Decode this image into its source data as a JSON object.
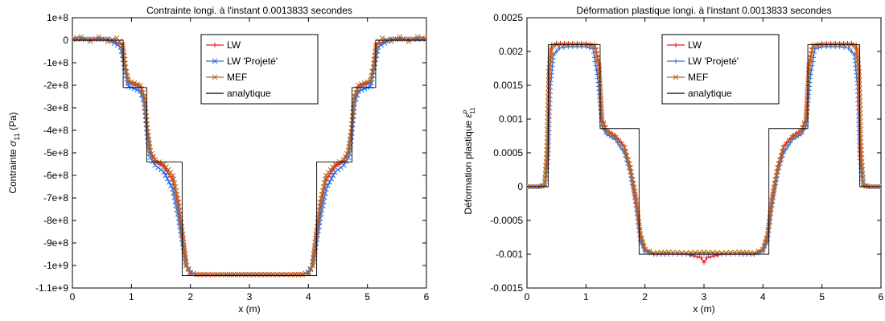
{
  "chart_data": [
    {
      "type": "line",
      "title": "Contrainte longi. à l'instant 0.0013833 secondes",
      "xlabel": "x (m)",
      "ylabel_prefix": "Contrainte",
      "ylabel_symbol": "σ",
      "ylabel_sub": "11",
      "ylabel_sup": "",
      "ylabel_suffix": "(Pa)",
      "xlim": [
        0,
        6
      ],
      "ylim": [
        -1100000000.0,
        100000000.0
      ],
      "xticks": [
        0,
        1,
        2,
        3,
        4,
        5,
        6
      ],
      "xtick_labels": [
        "0",
        "1",
        "2",
        "3",
        "4",
        "5",
        "6"
      ],
      "yticks": [
        100000000.0,
        0,
        -100000000.0,
        -200000000.0,
        -300000000.0,
        -400000000.0,
        -500000000.0,
        -600000000.0,
        -700000000.0,
        -800000000.0,
        -900000000.0,
        -1000000000.0,
        -1100000000.0
      ],
      "ytick_labels": [
        "1e+8",
        "0",
        "-1e+8",
        "-2e+8",
        "-3e+8",
        "-4e+8",
        "-5e+8",
        "-6e+8",
        "-7e+8",
        "-8e+8",
        "-9e+8",
        "-1e+9",
        "-1.1e+9"
      ],
      "grid": false,
      "legend_position": "top-center",
      "series": [
        {
          "name": "LW",
          "color": "#e41a1c",
          "marker": "plus",
          "x": [
            0,
            0.3,
            0.6,
            0.85,
            0.9,
            0.95,
            1.05,
            1.15,
            1.22,
            1.27,
            1.32,
            1.4,
            1.55,
            1.7,
            1.8,
            1.88,
            1.93,
            2.0,
            2.1,
            2.3,
            2.6,
            3.0,
            3.4,
            3.7,
            3.9,
            4.0,
            4.07,
            4.12,
            4.2,
            4.3,
            4.45,
            4.6,
            4.68,
            4.73,
            4.78,
            4.85,
            4.95,
            5.05,
            5.1,
            5.15,
            5.4,
            5.7,
            6.0
          ],
          "y": [
            5000000.0,
            5000000.0,
            5000000.0,
            -20000000.0,
            -130000000.0,
            -185000000.0,
            -195000000.0,
            -205000000.0,
            -260000000.0,
            -400000000.0,
            -500000000.0,
            -535000000.0,
            -560000000.0,
            -620000000.0,
            -750000000.0,
            -900000000.0,
            -1000000000.0,
            -1035000000.0,
            -1040000000.0,
            -1040000000.0,
            -1040000000.0,
            -1040000000.0,
            -1040000000.0,
            -1040000000.0,
            -1040000000.0,
            -1035000000.0,
            -1000000000.0,
            -900000000.0,
            -750000000.0,
            -620000000.0,
            -560000000.0,
            -535000000.0,
            -500000000.0,
            -400000000.0,
            -260000000.0,
            -205000000.0,
            -195000000.0,
            -185000000.0,
            -130000000.0,
            -20000000.0,
            5000000.0,
            5000000.0,
            5000000.0
          ]
        },
        {
          "name": "LW 'Projeté'",
          "color": "#2b6fe0",
          "marker": "x",
          "x": [
            0,
            0.3,
            0.6,
            0.82,
            0.9,
            0.95,
            1.05,
            1.15,
            1.22,
            1.27,
            1.32,
            1.4,
            1.55,
            1.7,
            1.8,
            1.88,
            1.93,
            2.0,
            2.1,
            2.3,
            2.6,
            3.0,
            3.4,
            3.7,
            3.9,
            4.0,
            4.07,
            4.12,
            4.2,
            4.3,
            4.45,
            4.6,
            4.68,
            4.73,
            4.78,
            4.85,
            4.95,
            5.05,
            5.1,
            5.18,
            5.4,
            5.7,
            6.0
          ],
          "y": [
            5000000.0,
            5000000.0,
            5000000.0,
            -30000000.0,
            -140000000.0,
            -205000000.0,
            -215000000.0,
            -225000000.0,
            -280000000.0,
            -430000000.0,
            -520000000.0,
            -555000000.0,
            -585000000.0,
            -660000000.0,
            -790000000.0,
            -920000000.0,
            -1000000000.0,
            -1030000000.0,
            -1040000000.0,
            -1040000000.0,
            -1040000000.0,
            -1040000000.0,
            -1040000000.0,
            -1040000000.0,
            -1040000000.0,
            -1030000000.0,
            -1000000000.0,
            -920000000.0,
            -790000000.0,
            -660000000.0,
            -585000000.0,
            -555000000.0,
            -520000000.0,
            -430000000.0,
            -280000000.0,
            -225000000.0,
            -215000000.0,
            -205000000.0,
            -140000000.0,
            -30000000.0,
            5000000.0,
            5000000.0,
            5000000.0
          ]
        },
        {
          "name": "MEF",
          "color": "#b5651d",
          "marker": "x",
          "x": [
            0,
            0.15,
            0.3,
            0.45,
            0.6,
            0.75,
            0.85,
            0.9,
            0.95,
            1.05,
            1.15,
            1.22,
            1.27,
            1.32,
            1.4,
            1.55,
            1.7,
            1.8,
            1.88,
            1.93,
            2.0,
            2.1,
            2.3,
            2.6,
            3.0,
            3.4,
            3.7,
            3.9,
            4.0,
            4.07,
            4.12,
            4.2,
            4.3,
            4.45,
            4.6,
            4.68,
            4.73,
            4.78,
            4.85,
            4.95,
            5.05,
            5.1,
            5.15,
            5.25,
            5.4,
            5.55,
            5.7,
            5.85,
            6.0
          ],
          "y": [
            5000000.0,
            15000000.0,
            -5000000.0,
            15000000.0,
            -5000000.0,
            10000000.0,
            -20000000.0,
            -120000000.0,
            -180000000.0,
            -190000000.0,
            -200000000.0,
            -250000000.0,
            -390000000.0,
            -490000000.0,
            -530000000.0,
            -550000000.0,
            -600000000.0,
            -720000000.0,
            -880000000.0,
            -1000000000.0,
            -1035000000.0,
            -1040000000.0,
            -1040000000.0,
            -1040000000.0,
            -1040000000.0,
            -1040000000.0,
            -1040000000.0,
            -1040000000.0,
            -1035000000.0,
            -1000000000.0,
            -880000000.0,
            -720000000.0,
            -600000000.0,
            -550000000.0,
            -530000000.0,
            -490000000.0,
            -390000000.0,
            -250000000.0,
            -200000000.0,
            -190000000.0,
            -180000000.0,
            -120000000.0,
            -20000000.0,
            10000000.0,
            -5000000.0,
            15000000.0,
            -5000000.0,
            15000000.0,
            5000000.0
          ]
        },
        {
          "name": "analytique",
          "color": "#000000",
          "marker": "none",
          "x": [
            0,
            0.86,
            0.86,
            1.26,
            1.26,
            1.86,
            1.86,
            4.14,
            4.14,
            4.74,
            4.74,
            5.14,
            5.14,
            6.0
          ],
          "y": [
            0,
            0,
            -210000000.0,
            -210000000.0,
            -540000000.0,
            -540000000.0,
            -1045000000.0,
            -1045000000.0,
            -540000000.0,
            -540000000.0,
            -210000000.0,
            -210000000.0,
            0,
            0
          ]
        }
      ]
    },
    {
      "type": "line",
      "title": "Déformation plastique longi. à l'instant 0.0013833 secondes",
      "xlabel": "x (m)",
      "ylabel_prefix": "Déformation plastique",
      "ylabel_symbol": "ε",
      "ylabel_sub": "11",
      "ylabel_sup": "p",
      "ylabel_suffix": "",
      "xlim": [
        0,
        6
      ],
      "ylim": [
        -0.0015,
        0.0025
      ],
      "xticks": [
        0,
        1,
        2,
        3,
        4,
        5,
        6
      ],
      "xtick_labels": [
        "0",
        "1",
        "2",
        "3",
        "4",
        "5",
        "6"
      ],
      "yticks": [
        0.0025,
        0.002,
        0.0015,
        0.001,
        0.0005,
        0,
        -0.0005,
        -0.001,
        -0.0015
      ],
      "ytick_labels": [
        "0.0025",
        "0.002",
        "0.0015",
        "0.001",
        "0.0005",
        "0",
        "-0.0005",
        "-0.001",
        "-0.0015"
      ],
      "grid": false,
      "legend_position": "top-center",
      "series": [
        {
          "name": "LW",
          "color": "#e41a1c",
          "marker": "plus",
          "x": [
            0,
            0.2,
            0.3,
            0.35,
            0.38,
            0.42,
            0.5,
            0.7,
            1.0,
            1.15,
            1.22,
            1.27,
            1.35,
            1.5,
            1.65,
            1.75,
            1.85,
            1.92,
            2.0,
            2.15,
            2.4,
            2.7,
            2.95,
            3.0,
            3.05,
            3.3,
            3.6,
            3.85,
            4.0,
            4.08,
            4.15,
            4.25,
            4.35,
            4.5,
            4.65,
            4.73,
            4.78,
            4.85,
            5.0,
            5.3,
            5.5,
            5.58,
            5.62,
            5.65,
            5.7,
            5.8,
            6.0
          ],
          "y": [
            0,
            0,
            2e-05,
            0.0005,
            0.0017,
            0.0021,
            0.00212,
            0.00212,
            0.00212,
            0.0021,
            0.0018,
            0.001,
            0.00083,
            0.00075,
            0.0006,
            0.0003,
            -0.0002,
            -0.0007,
            -0.00093,
            -0.001,
            -0.001,
            -0.001,
            -0.00105,
            -0.00112,
            -0.00105,
            -0.001,
            -0.001,
            -0.001,
            -0.00093,
            -0.0007,
            -0.0002,
            0.0003,
            0.0006,
            0.00075,
            0.00083,
            0.001,
            0.0018,
            0.0021,
            0.00212,
            0.00212,
            0.00212,
            0.0021,
            0.0017,
            0.0005,
            2e-05,
            0,
            0
          ]
        },
        {
          "name": "LW 'Projeté'",
          "color": "#2b6fe0",
          "marker": "plus",
          "x": [
            0,
            0.2,
            0.3,
            0.36,
            0.4,
            0.45,
            0.55,
            0.7,
            1.0,
            1.12,
            1.2,
            1.27,
            1.35,
            1.5,
            1.65,
            1.75,
            1.85,
            1.92,
            2.0,
            2.15,
            2.4,
            2.7,
            3.0,
            3.3,
            3.6,
            3.85,
            4.0,
            4.08,
            4.15,
            4.25,
            4.35,
            4.5,
            4.65,
            4.73,
            4.8,
            4.88,
            5.0,
            5.3,
            5.45,
            5.55,
            5.6,
            5.64,
            5.7,
            5.8,
            6.0
          ],
          "y": [
            0,
            0,
            2e-05,
            0.0004,
            0.0015,
            0.00195,
            0.00205,
            0.00207,
            0.00207,
            0.00204,
            0.0016,
            0.0009,
            0.00078,
            0.0007,
            0.0005,
            0.0002,
            -0.0003,
            -0.0008,
            -0.00096,
            -0.001,
            -0.001,
            -0.001,
            -0.001,
            -0.001,
            -0.001,
            -0.001,
            -0.00096,
            -0.0008,
            -0.0003,
            0.0002,
            0.0005,
            0.0007,
            0.00078,
            0.0009,
            0.0016,
            0.00204,
            0.00207,
            0.00207,
            0.00205,
            0.00195,
            0.0015,
            0.0004,
            2e-05,
            0,
            0
          ]
        },
        {
          "name": "MEF",
          "color": "#b5651d",
          "marker": "x",
          "x": [
            0,
            0.2,
            0.3,
            0.34,
            0.37,
            0.41,
            0.5,
            0.7,
            1.0,
            1.15,
            1.22,
            1.27,
            1.35,
            1.5,
            1.65,
            1.75,
            1.85,
            1.92,
            2.0,
            2.15,
            2.4,
            2.7,
            3.0,
            3.3,
            3.6,
            3.85,
            4.0,
            4.08,
            4.15,
            4.25,
            4.35,
            4.5,
            4.65,
            4.73,
            4.78,
            4.85,
            5.0,
            5.3,
            5.5,
            5.59,
            5.63,
            5.66,
            5.7,
            5.8,
            6.0
          ],
          "y": [
            0,
            0,
            2e-05,
            0.0006,
            0.0017,
            0.00205,
            0.0021,
            0.0021,
            0.0021,
            0.00208,
            0.0018,
            0.001,
            0.00082,
            0.00073,
            0.00058,
            0.00028,
            -0.0002,
            -0.0007,
            -0.00093,
            -0.00098,
            -0.00097,
            -0.00098,
            -0.00097,
            -0.00098,
            -0.00097,
            -0.00098,
            -0.00093,
            -0.0007,
            -0.0002,
            0.00028,
            0.00058,
            0.00073,
            0.00082,
            0.001,
            0.0018,
            0.00208,
            0.0021,
            0.0021,
            0.0021,
            0.00205,
            0.0017,
            0.0006,
            2e-05,
            0,
            0
          ]
        },
        {
          "name": "analytique",
          "color": "#000000",
          "marker": "none",
          "x": [
            0,
            0.36,
            0.36,
            1.24,
            1.24,
            1.9,
            1.9,
            4.1,
            4.1,
            4.76,
            4.76,
            5.64,
            5.64,
            6.0
          ],
          "y": [
            0,
            0,
            0.0021,
            0.0021,
            0.00086,
            0.00086,
            -0.001,
            -0.001,
            0.00086,
            0.00086,
            0.0021,
            0.0021,
            0,
            0
          ]
        }
      ]
    }
  ]
}
